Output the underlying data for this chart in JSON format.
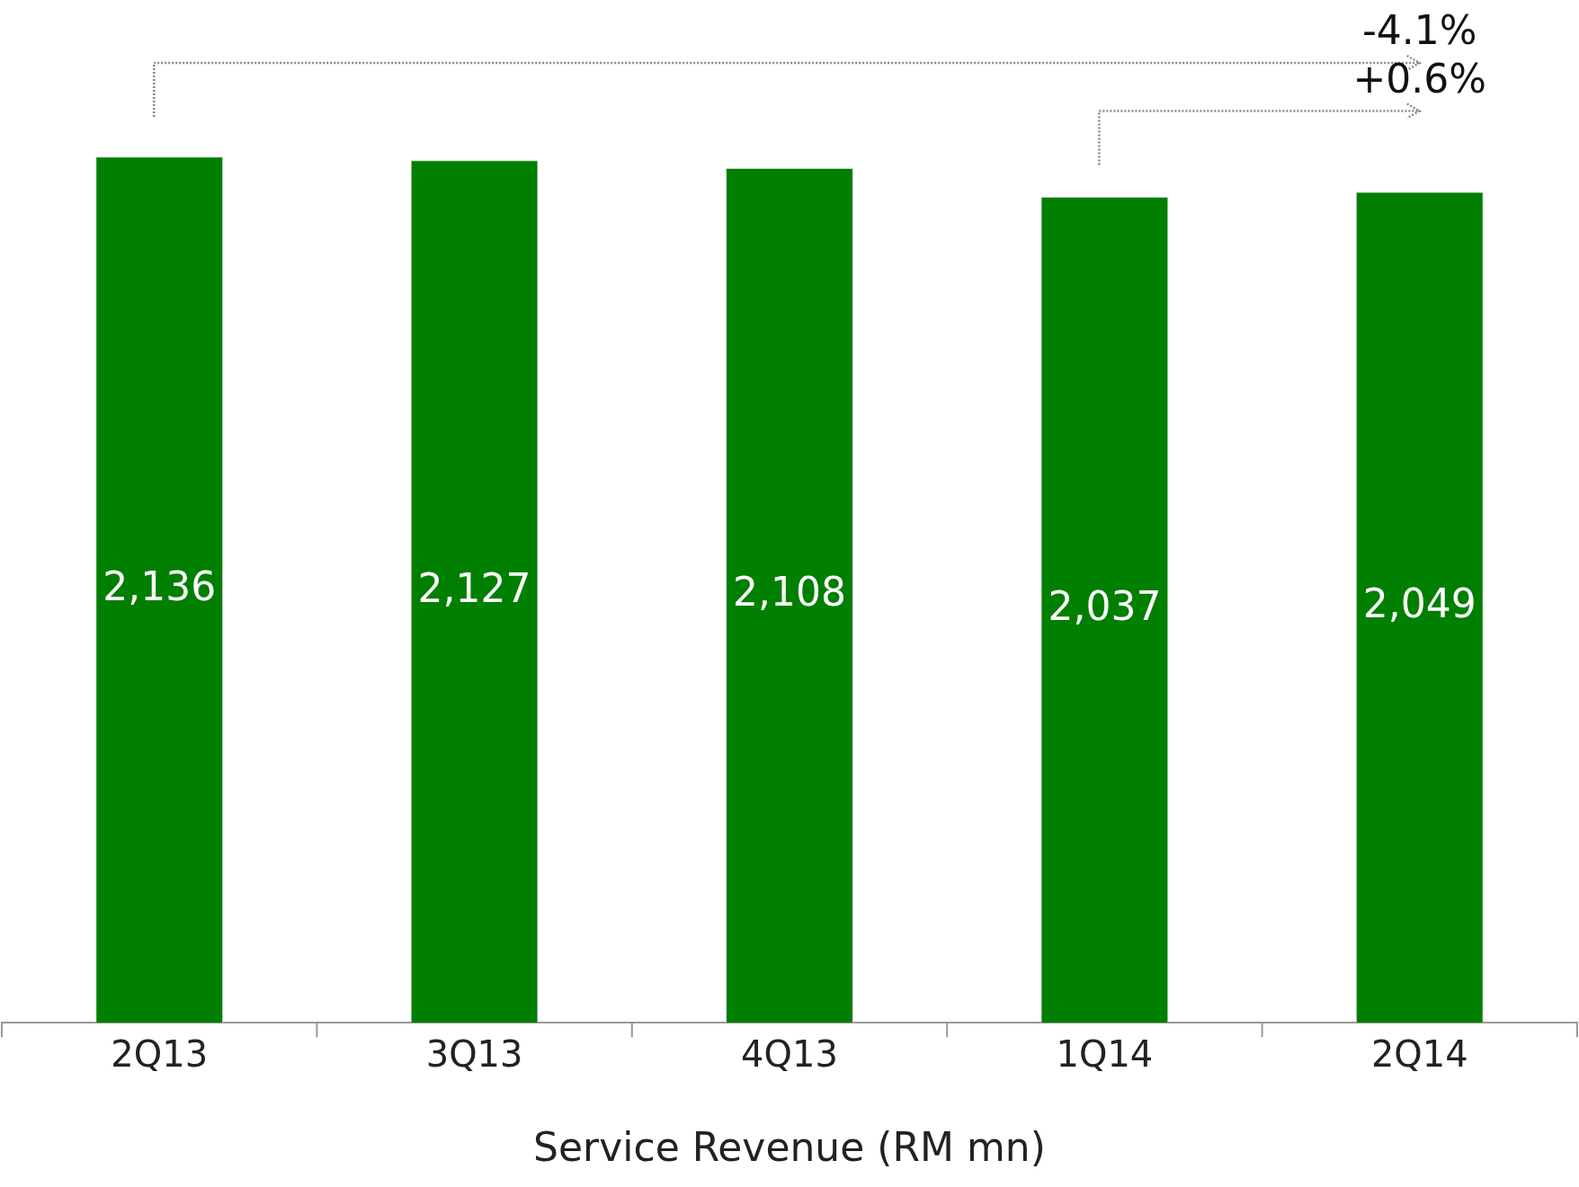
{
  "chart_data": {
    "type": "bar",
    "xlabel": "Service Revenue (RM mn)",
    "categories": [
      "2Q13",
      "3Q13",
      "4Q13",
      "1Q14",
      "2Q14"
    ],
    "values": [
      2136,
      2127,
      2108,
      2037,
      2049
    ],
    "color": "#007f00",
    "value_labels": [
      "2,136",
      "2,127",
      "2,108",
      "2,037",
      "2,049"
    ],
    "tick_labels": "x",
    "grid": false,
    "legend": false,
    "annotations": [
      "-4.1%",
      "+0.6%"
    ]
  }
}
